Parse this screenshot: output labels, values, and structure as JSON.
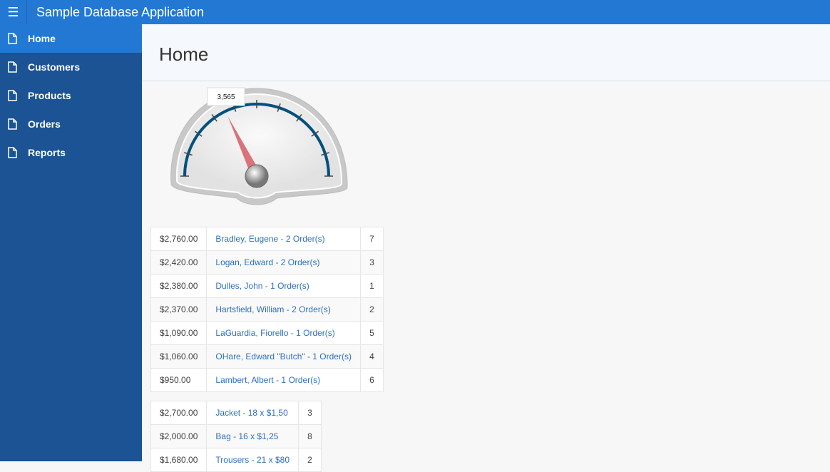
{
  "app": {
    "title": "Sample Database Application",
    "menu_icon": "hamburger-icon"
  },
  "sidebar": {
    "items": [
      {
        "label": "Home",
        "active": true
      },
      {
        "label": "Customers"
      },
      {
        "label": "Products"
      },
      {
        "label": "Orders"
      },
      {
        "label": "Reports"
      }
    ]
  },
  "page": {
    "title": "Home"
  },
  "gauge": {
    "value_label": "3,565",
    "value": 3565,
    "max": 10000,
    "colors": {
      "arc": "#00507f",
      "needle": "#d9737a"
    }
  },
  "customers_table": [
    [
      "$2,760.00",
      "Bradley, Eugene - 2 Order(s)",
      "7"
    ],
    [
      "$2,420.00",
      "Logan, Edward - 2 Order(s)",
      "3"
    ],
    [
      "$2,380.00",
      "Dulles, John - 1 Order(s)",
      "1"
    ],
    [
      "$2,370.00",
      "Hartsfield, William - 2 Order(s)",
      "2"
    ],
    [
      "$1,090.00",
      "LaGuardia, Fiorello - 1 Order(s)",
      "5"
    ],
    [
      "$1,060.00",
      "OHare, Edward \"Butch\" - 1 Order(s)",
      "4"
    ],
    [
      "$950.00",
      "Lambert, Albert - 1 Order(s)",
      "6"
    ]
  ],
  "products_table": [
    [
      "$2,700.00",
      "Jacket - 18 x $1,50",
      "3"
    ],
    [
      "$2,000.00",
      "Bag - 16 x $1,25",
      "8"
    ],
    [
      "$1,680.00",
      "Trousers - 21 x $80",
      "2"
    ]
  ]
}
